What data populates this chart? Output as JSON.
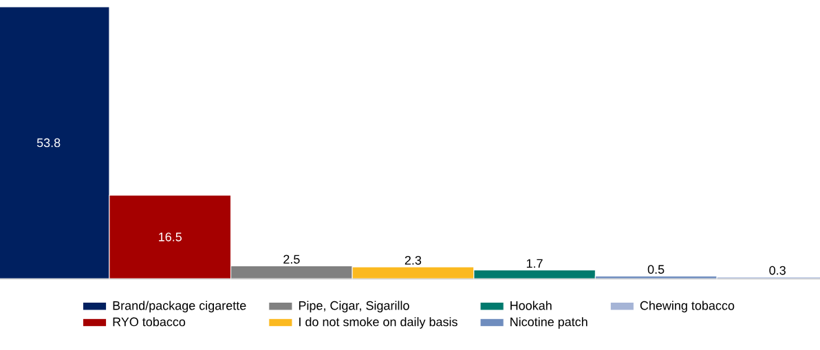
{
  "chart_data": {
    "type": "bar",
    "categories": [
      null
    ],
    "data_labels": true,
    "legend": "bottom",
    "series": [
      {
        "name": "Brand/package cigarette",
        "color": "#002060",
        "values": [
          53.8
        ]
      },
      {
        "name": "RYO tobacco",
        "color": "#a50000",
        "values": [
          16.5
        ]
      },
      {
        "name": "Pipe, Cigar, Sigarillo",
        "color": "#808080",
        "values": [
          2.5
        ]
      },
      {
        "name": "I do not smoke on daily basis",
        "color": "#fbb920",
        "values": [
          2.3
        ]
      },
      {
        "name": "Hookah",
        "color": "#007a6e",
        "values": [
          1.7
        ]
      },
      {
        "name": "Nicotine patch",
        "color": "#6f8dbe",
        "values": [
          0.5
        ]
      },
      {
        "name": "Chewing tobacco",
        "color": "#a5b4d6",
        "values": [
          0.3
        ]
      }
    ]
  }
}
